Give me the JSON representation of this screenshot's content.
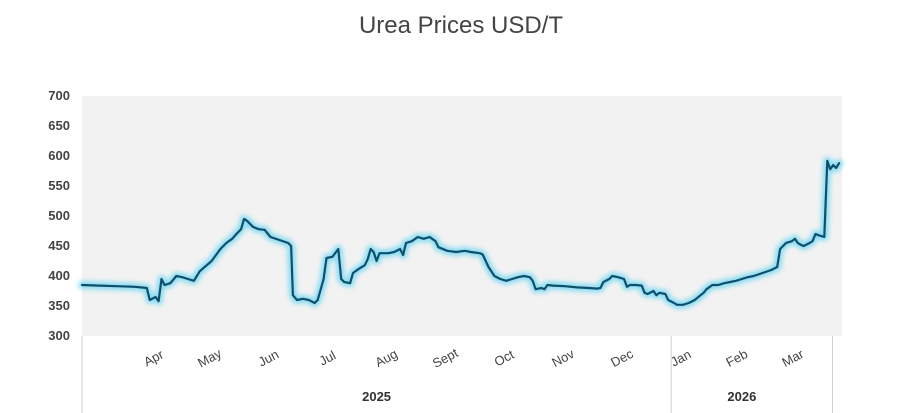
{
  "chart_data": {
    "type": "line",
    "title": "Urea Prices USD/T",
    "xlabel": "",
    "ylabel": "",
    "ylim": [
      300,
      700
    ],
    "yticks": [
      300,
      350,
      400,
      450,
      500,
      550,
      600,
      650,
      700
    ],
    "month_ticks": [
      {
        "label": "Apr",
        "x": 1.25
      },
      {
        "label": "May",
        "x": 2.2
      },
      {
        "label": "Jun",
        "x": 3.2
      },
      {
        "label": "Jul",
        "x": 4.2
      },
      {
        "label": "Aug",
        "x": 5.2
      },
      {
        "label": "Sept",
        "x": 6.2
      },
      {
        "label": "Oct",
        "x": 7.2
      },
      {
        "label": "Nov",
        "x": 8.2
      },
      {
        "label": "Dec",
        "x": 9.2
      },
      {
        "label": "Jan",
        "x": 10.2
      },
      {
        "label": "Feb",
        "x": 11.15
      },
      {
        "label": "Mar",
        "x": 12.1
      }
    ],
    "years": [
      {
        "label": "2025",
        "from": 0,
        "to": 10.0
      },
      {
        "label": "2026",
        "from": 10.0,
        "to": 12.4
      }
    ],
    "xlim": [
      0,
      12.4
    ],
    "series": [
      {
        "name": "Urea",
        "color": "#0f4f6e",
        "glow": "#5fd4f2",
        "points": [
          [
            0,
            385
          ],
          [
            0.3,
            384
          ],
          [
            0.6,
            383
          ],
          [
            0.9,
            382
          ],
          [
            1.1,
            380
          ],
          [
            1.15,
            360
          ],
          [
            1.25,
            365
          ],
          [
            1.3,
            358
          ],
          [
            1.35,
            395
          ],
          [
            1.4,
            385
          ],
          [
            1.5,
            388
          ],
          [
            1.6,
            400
          ],
          [
            1.7,
            398
          ],
          [
            1.8,
            395
          ],
          [
            1.9,
            392
          ],
          [
            2.0,
            408
          ],
          [
            2.2,
            425
          ],
          [
            2.35,
            445
          ],
          [
            2.45,
            455
          ],
          [
            2.55,
            462
          ],
          [
            2.62,
            470
          ],
          [
            2.7,
            478
          ],
          [
            2.75,
            495
          ],
          [
            2.8,
            492
          ],
          [
            2.9,
            482
          ],
          [
            3.0,
            478
          ],
          [
            3.1,
            477
          ],
          [
            3.2,
            465
          ],
          [
            3.35,
            460
          ],
          [
            3.5,
            455
          ],
          [
            3.55,
            450
          ],
          [
            3.58,
            368
          ],
          [
            3.65,
            360
          ],
          [
            3.75,
            362
          ],
          [
            3.85,
            360
          ],
          [
            3.95,
            355
          ],
          [
            4.0,
            360
          ],
          [
            4.1,
            395
          ],
          [
            4.15,
            430
          ],
          [
            4.25,
            432
          ],
          [
            4.35,
            445
          ],
          [
            4.4,
            395
          ],
          [
            4.45,
            390
          ],
          [
            4.55,
            388
          ],
          [
            4.6,
            405
          ],
          [
            4.7,
            412
          ],
          [
            4.8,
            418
          ],
          [
            4.85,
            428
          ],
          [
            4.9,
            445
          ],
          [
            4.95,
            440
          ],
          [
            5.0,
            425
          ],
          [
            5.05,
            438
          ],
          [
            5.2,
            438
          ],
          [
            5.3,
            440
          ],
          [
            5.4,
            445
          ],
          [
            5.45,
            435
          ],
          [
            5.5,
            455
          ],
          [
            5.6,
            458
          ],
          [
            5.7,
            465
          ],
          [
            5.8,
            462
          ],
          [
            5.9,
            465
          ],
          [
            6.0,
            458
          ],
          [
            6.05,
            448
          ],
          [
            6.2,
            442
          ],
          [
            6.35,
            440
          ],
          [
            6.5,
            442
          ],
          [
            6.6,
            440
          ],
          [
            6.75,
            438
          ],
          [
            6.8,
            436
          ],
          [
            6.9,
            415
          ],
          [
            7.0,
            400
          ],
          [
            7.1,
            395
          ],
          [
            7.2,
            392
          ],
          [
            7.3,
            395
          ],
          [
            7.4,
            398
          ],
          [
            7.5,
            400
          ],
          [
            7.6,
            398
          ],
          [
            7.65,
            392
          ],
          [
            7.7,
            378
          ],
          [
            7.8,
            380
          ],
          [
            7.85,
            378
          ],
          [
            7.9,
            385
          ],
          [
            8.0,
            384
          ],
          [
            8.2,
            383
          ],
          [
            8.4,
            381
          ],
          [
            8.6,
            380
          ],
          [
            8.75,
            379
          ],
          [
            8.8,
            380
          ],
          [
            8.85,
            390
          ],
          [
            8.95,
            395
          ],
          [
            9.0,
            400
          ],
          [
            9.1,
            398
          ],
          [
            9.2,
            395
          ],
          [
            9.25,
            382
          ],
          [
            9.3,
            385
          ],
          [
            9.4,
            385
          ],
          [
            9.5,
            384
          ],
          [
            9.55,
            372
          ],
          [
            9.6,
            370
          ],
          [
            9.7,
            375
          ],
          [
            9.75,
            368
          ],
          [
            9.8,
            372
          ],
          [
            9.9,
            370
          ],
          [
            9.95,
            360
          ],
          [
            10.05,
            355
          ],
          [
            10.1,
            352
          ],
          [
            10.2,
            352
          ],
          [
            10.3,
            355
          ],
          [
            10.4,
            360
          ],
          [
            10.5,
            368
          ],
          [
            10.55,
            372
          ],
          [
            10.6,
            378
          ],
          [
            10.7,
            385
          ],
          [
            10.8,
            385
          ],
          [
            10.9,
            388
          ],
          [
            11.0,
            390
          ],
          [
            11.1,
            392
          ],
          [
            11.2,
            395
          ],
          [
            11.3,
            398
          ],
          [
            11.4,
            400
          ],
          [
            11.55,
            405
          ],
          [
            11.7,
            410
          ],
          [
            11.8,
            415
          ],
          [
            11.85,
            445
          ],
          [
            11.95,
            455
          ],
          [
            12.05,
            458
          ],
          [
            12.1,
            462
          ],
          [
            12.15,
            455
          ],
          [
            12.2,
            452
          ],
          [
            12.25,
            450
          ],
          [
            12.35,
            455
          ],
          [
            12.4,
            458
          ],
          [
            12.45,
            470
          ],
          [
            12.5,
            468
          ],
          [
            12.6,
            465
          ],
          [
            12.65,
            592
          ],
          [
            12.7,
            578
          ],
          [
            12.75,
            585
          ],
          [
            12.8,
            580
          ],
          [
            12.85,
            588
          ]
        ]
      }
    ]
  }
}
